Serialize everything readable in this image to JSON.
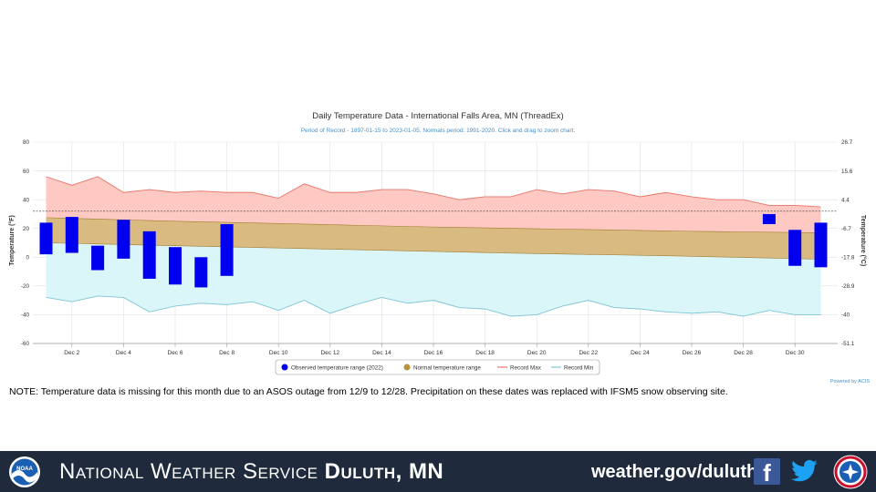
{
  "chart_data": {
    "type": "bar",
    "title": "Daily Temperature Data - International Falls Area, MN (ThreadEx)",
    "subtitle": "Period of Record - 1897-01-15 to 2023-01-05. Normals period: 1991-2020. Click and drag to zoom chart.",
    "ylabel": "Temperature (°F)",
    "ylabel_right": "Temperature (°C)",
    "ylim": [
      -60,
      80
    ],
    "y_ticks": [
      "80",
      "60",
      "40",
      "20",
      "0",
      "-20",
      "-40",
      "-60"
    ],
    "y_ticks_right": [
      "26.7",
      "15.6",
      "4.4",
      "-6.7",
      "-17.8",
      "-28.9",
      "-40",
      "-51.1"
    ],
    "x_tick_labels": [
      "Dec 2",
      "Dec 4",
      "Dec 6",
      "Dec 8",
      "Dec 10",
      "Dec 12",
      "Dec 14",
      "Dec 16",
      "Dec 18",
      "Dec 20",
      "Dec 22",
      "Dec 24",
      "Dec 26",
      "Dec 28",
      "Dec 30"
    ],
    "days": [
      1,
      2,
      3,
      4,
      5,
      6,
      7,
      8,
      9,
      10,
      11,
      12,
      13,
      14,
      15,
      16,
      17,
      18,
      19,
      20,
      21,
      22,
      23,
      24,
      25,
      26,
      27,
      28,
      29,
      30,
      31
    ],
    "freezing_line": 32,
    "series": [
      {
        "name": "Observed temperature range (2022)",
        "color": "#0000ee",
        "ranges": [
          [
            1,
            24,
            2
          ],
          [
            2,
            28,
            3
          ],
          [
            3,
            8,
            -9
          ],
          [
            4,
            26,
            -1
          ],
          [
            5,
            18,
            -15
          ],
          [
            6,
            7,
            -19
          ],
          [
            7,
            0,
            -21
          ],
          [
            8,
            23,
            -13
          ],
          [
            29,
            30,
            23
          ],
          [
            30,
            19,
            -6
          ],
          [
            31,
            24,
            -7
          ]
        ]
      },
      {
        "name": "Normal temperature range",
        "color": "#b8923c",
        "high": [
          27.5,
          27,
          26.5,
          26,
          25.5,
          25,
          24.6,
          24.2,
          23.8,
          23.4,
          23,
          22.6,
          22.2,
          21.8,
          21.4,
          21,
          20.7,
          20.4,
          20.1,
          19.8,
          19.5,
          19.2,
          18.9,
          18.6,
          18.3,
          18,
          17.8,
          17.6,
          17.4,
          17.2,
          17
        ],
        "low": [
          10,
          9.6,
          9.2,
          8.8,
          8.4,
          8,
          7.6,
          7.2,
          6.8,
          6.4,
          6,
          5.6,
          5.2,
          4.8,
          4.4,
          4,
          3.6,
          3.2,
          2.8,
          2.5,
          2.2,
          1.9,
          1.6,
          1.3,
          1,
          0.6,
          0.2,
          -0.2,
          -0.6,
          -1,
          -1.4
        ]
      },
      {
        "name": "Record Max",
        "color": "#e8766a",
        "values": [
          56,
          50,
          56,
          45,
          47,
          45,
          46,
          45,
          45,
          41,
          51,
          45,
          45,
          47,
          47,
          44,
          40,
          42,
          42,
          47,
          44,
          47,
          46,
          42,
          45,
          42,
          40,
          40,
          36,
          36,
          35
        ]
      },
      {
        "name": "Record Min",
        "color": "#7ec4d6",
        "values": [
          -28,
          -31,
          -27,
          -28,
          -38,
          -34,
          -32,
          -33,
          -31,
          -37,
          -30,
          -39,
          -33,
          -28,
          -32,
          -30,
          -35,
          -36,
          -41,
          -40,
          -34,
          -30,
          -35,
          -36,
          -38,
          -39,
          -38,
          -41,
          -37,
          -40,
          -40
        ]
      }
    ],
    "credit": "Powered by ACIS",
    "legend_position": "bottom-center",
    "grid": true
  },
  "note": "NOTE:  Temperature data is missing for this month due to an ASOS outage from 12/9 to 12/28. Precipitation on these dates was replaced with IFSM5 snow observing site.",
  "footer": {
    "title_regular": "National Weather Service",
    "title_bold": "Duluth, MN",
    "url": "weather.gov/duluth",
    "facebook_glyph": "f",
    "noaa_logo_text": "NOAA",
    "icons": [
      "noaa-logo",
      "facebook-icon",
      "twitter-icon",
      "nws-logo"
    ]
  }
}
